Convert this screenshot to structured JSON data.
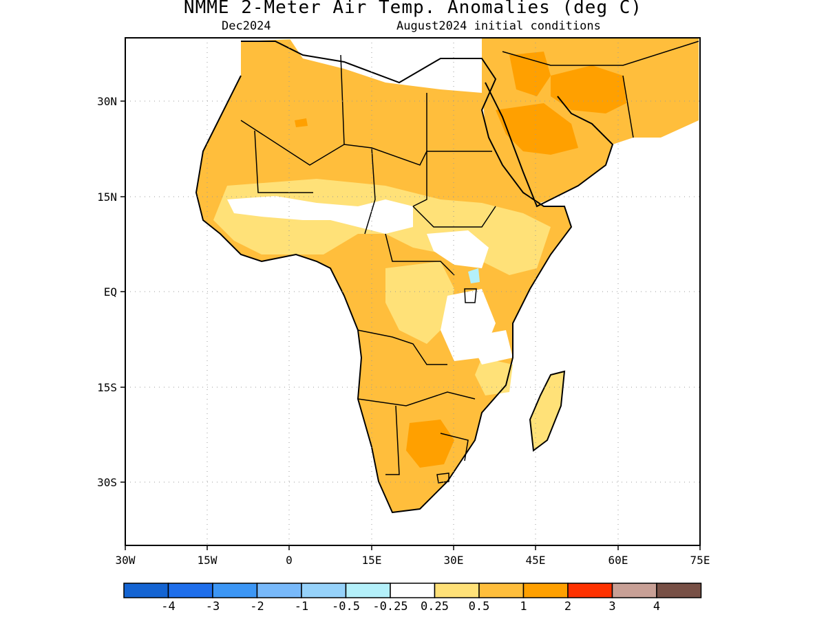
{
  "title": "NMME 2-Meter Air Temp. Anomalies (deg C)",
  "subtitle_left": "Dec2024",
  "subtitle_right": "August2024 initial conditions",
  "map": {
    "region": "Africa and Middle East",
    "lon_range": [
      -30,
      75
    ],
    "lat_range": [
      -40,
      40
    ],
    "x_ticks": [
      "30W",
      "15W",
      "0",
      "15E",
      "30E",
      "45E",
      "60E",
      "75E"
    ],
    "y_ticks": [
      "30N",
      "15N",
      "EQ",
      "15S",
      "30S"
    ],
    "gridlines": "dotted"
  },
  "colorbar": {
    "colors": [
      "#1464d2",
      "#1e6eeb",
      "#3c96f5",
      "#78b9fa",
      "#96d2fa",
      "#b4f0fa",
      "#ffffff",
      "#ffe178",
      "#ffbe3c",
      "#ffa000",
      "#ff3200",
      "#c8a096",
      "#785046"
    ],
    "labels": [
      "-4",
      "-3",
      "-2",
      "-1",
      "-0.5",
      "-0.25",
      "0.25",
      "0.5",
      "1",
      "2",
      "3",
      "4"
    ]
  },
  "legend": {
    "anomaly_05_1": "#ffbe3c",
    "anomaly_025_05": "#ffe178",
    "anomaly_1_2": "#ffa000",
    "anomaly_neg": "#b4f0fa"
  }
}
